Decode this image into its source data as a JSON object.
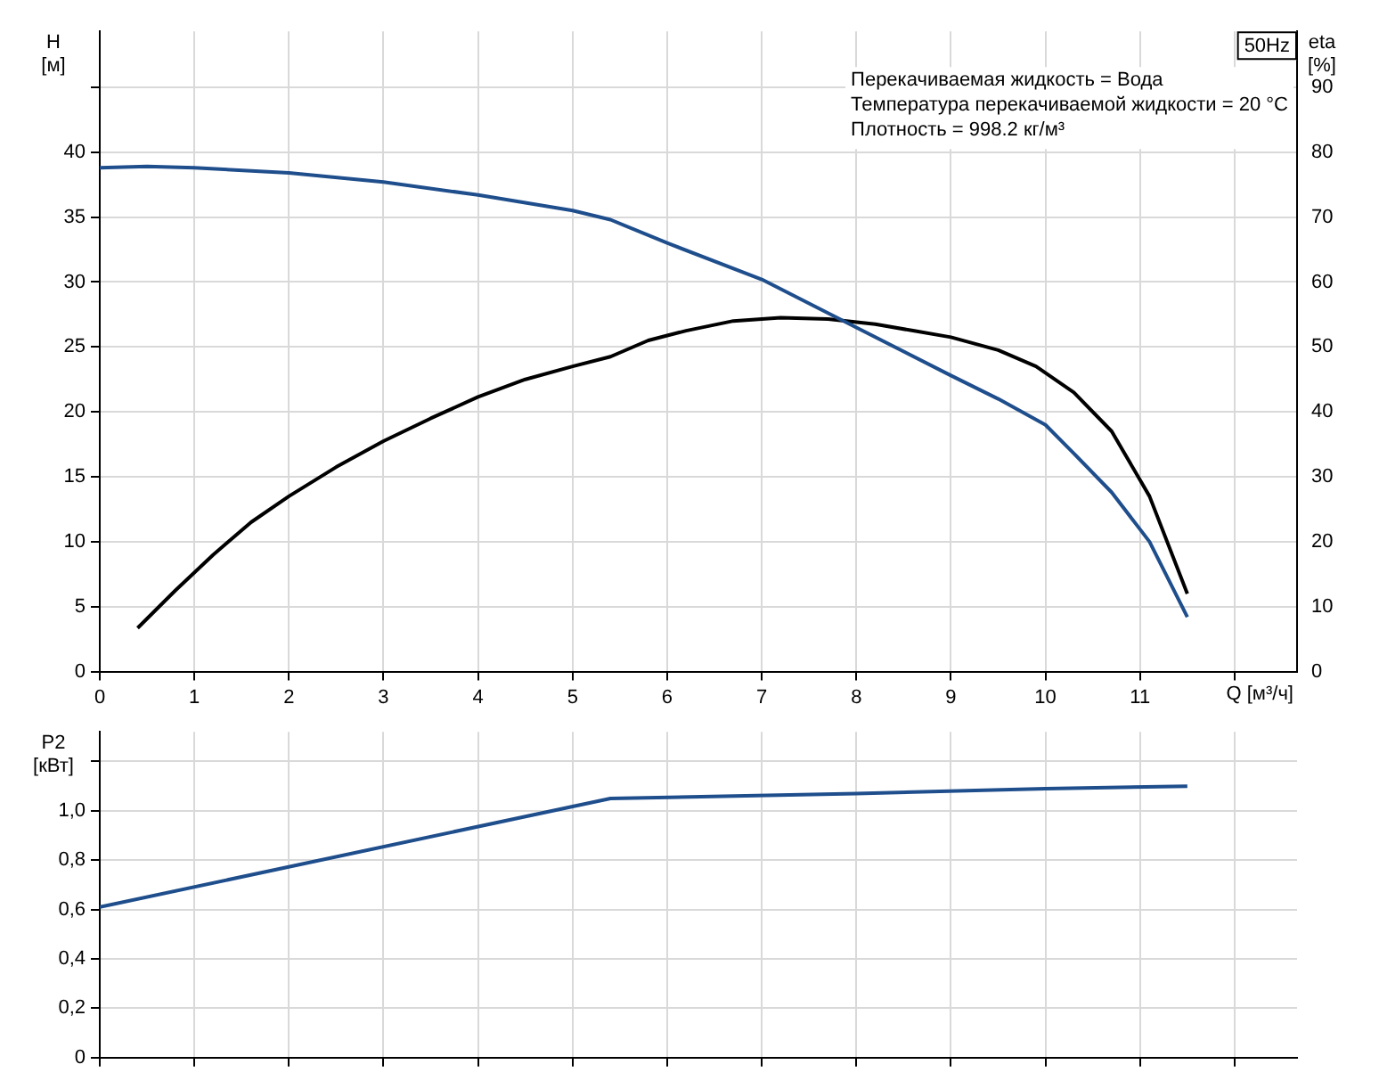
{
  "chart_data": [
    {
      "type": "line",
      "title": "50Hz",
      "ylabel": "H [м]",
      "y2label": "eta [%]",
      "xlabel": "Q [м³/ч]",
      "annotations": [
        "Перекачиваемая жидкость = Вода",
        "Температура перекачиваемой жидкости = 20 °C",
        "Плотность = 998.2 кг/м³"
      ],
      "xlim": [
        0,
        12.66
      ],
      "xticks": [
        0,
        1,
        2,
        3,
        4,
        5,
        6,
        7,
        8,
        9,
        10,
        11,
        {
          "value": 12,
          "label": null
        }
      ],
      "ylim": [
        0,
        49.3
      ],
      "yticks": [
        0,
        5,
        10,
        15,
        20,
        25,
        30,
        35,
        40,
        {
          "value": 45,
          "label": null
        }
      ],
      "y2lim": [
        0,
        98.6
      ],
      "y2ticks": [
        0,
        10,
        20,
        30,
        40,
        50,
        60,
        70,
        80,
        90
      ],
      "grid": true,
      "legend": false,
      "series": [
        {
          "color": "#1f4e8c",
          "x": [
            0,
            0.5,
            1,
            2,
            3,
            4,
            5,
            5.4,
            6,
            7,
            8,
            9,
            9.5,
            10,
            10.3,
            10.7,
            11.1,
            11.5
          ],
          "values": [
            38.8,
            38.9,
            38.8,
            38.4,
            37.7,
            36.7,
            35.5,
            34.8,
            33.0,
            30.2,
            26.5,
            22.8,
            21,
            19,
            16.8,
            13.8,
            10,
            4.2
          ]
        },
        {
          "color": "#000000",
          "axis": "y2",
          "x": [
            0.4,
            0.8,
            1.2,
            1.6,
            2,
            2.5,
            3,
            3.5,
            4,
            4.5,
            5,
            5.4,
            5.8,
            6.2,
            6.7,
            7.2,
            7.7,
            8.2,
            8.6,
            9,
            9.5,
            9.9,
            10.3,
            10.7,
            11.1,
            11.5
          ],
          "values": [
            6.7,
            12.5,
            18,
            23,
            27,
            31.5,
            35.5,
            39,
            42.3,
            45,
            47,
            48.5,
            51,
            52.5,
            54,
            54.5,
            54.3,
            53.5,
            52.5,
            51.5,
            49.5,
            47,
            43,
            37,
            27,
            12
          ]
        }
      ]
    },
    {
      "type": "line",
      "ylabel": "P2 [кВт]",
      "xlim": [
        0,
        12.66
      ],
      "xticks": [
        0,
        1,
        2,
        3,
        4,
        5,
        6,
        7,
        8,
        9,
        10,
        11,
        12
      ],
      "ylim": [
        0,
        1.32
      ],
      "yticks": [
        0,
        {
          "value": 0.2,
          "label": "0,2"
        },
        {
          "value": 0.4,
          "label": "0,4"
        },
        {
          "value": 0.6,
          "label": "0,6"
        },
        {
          "value": 0.8,
          "label": "0,8"
        },
        {
          "value": 1.0,
          "label": "1,0"
        },
        {
          "value": 1.2,
          "label": null
        }
      ],
      "tick_labels": "y",
      "grid": true,
      "legend": false,
      "series": [
        {
          "color": "#1f4e8c",
          "x": [
            0,
            5.4,
            8,
            10,
            11.5
          ],
          "values": [
            0.61,
            1.05,
            1.07,
            1.09,
            1.1
          ]
        }
      ]
    }
  ]
}
